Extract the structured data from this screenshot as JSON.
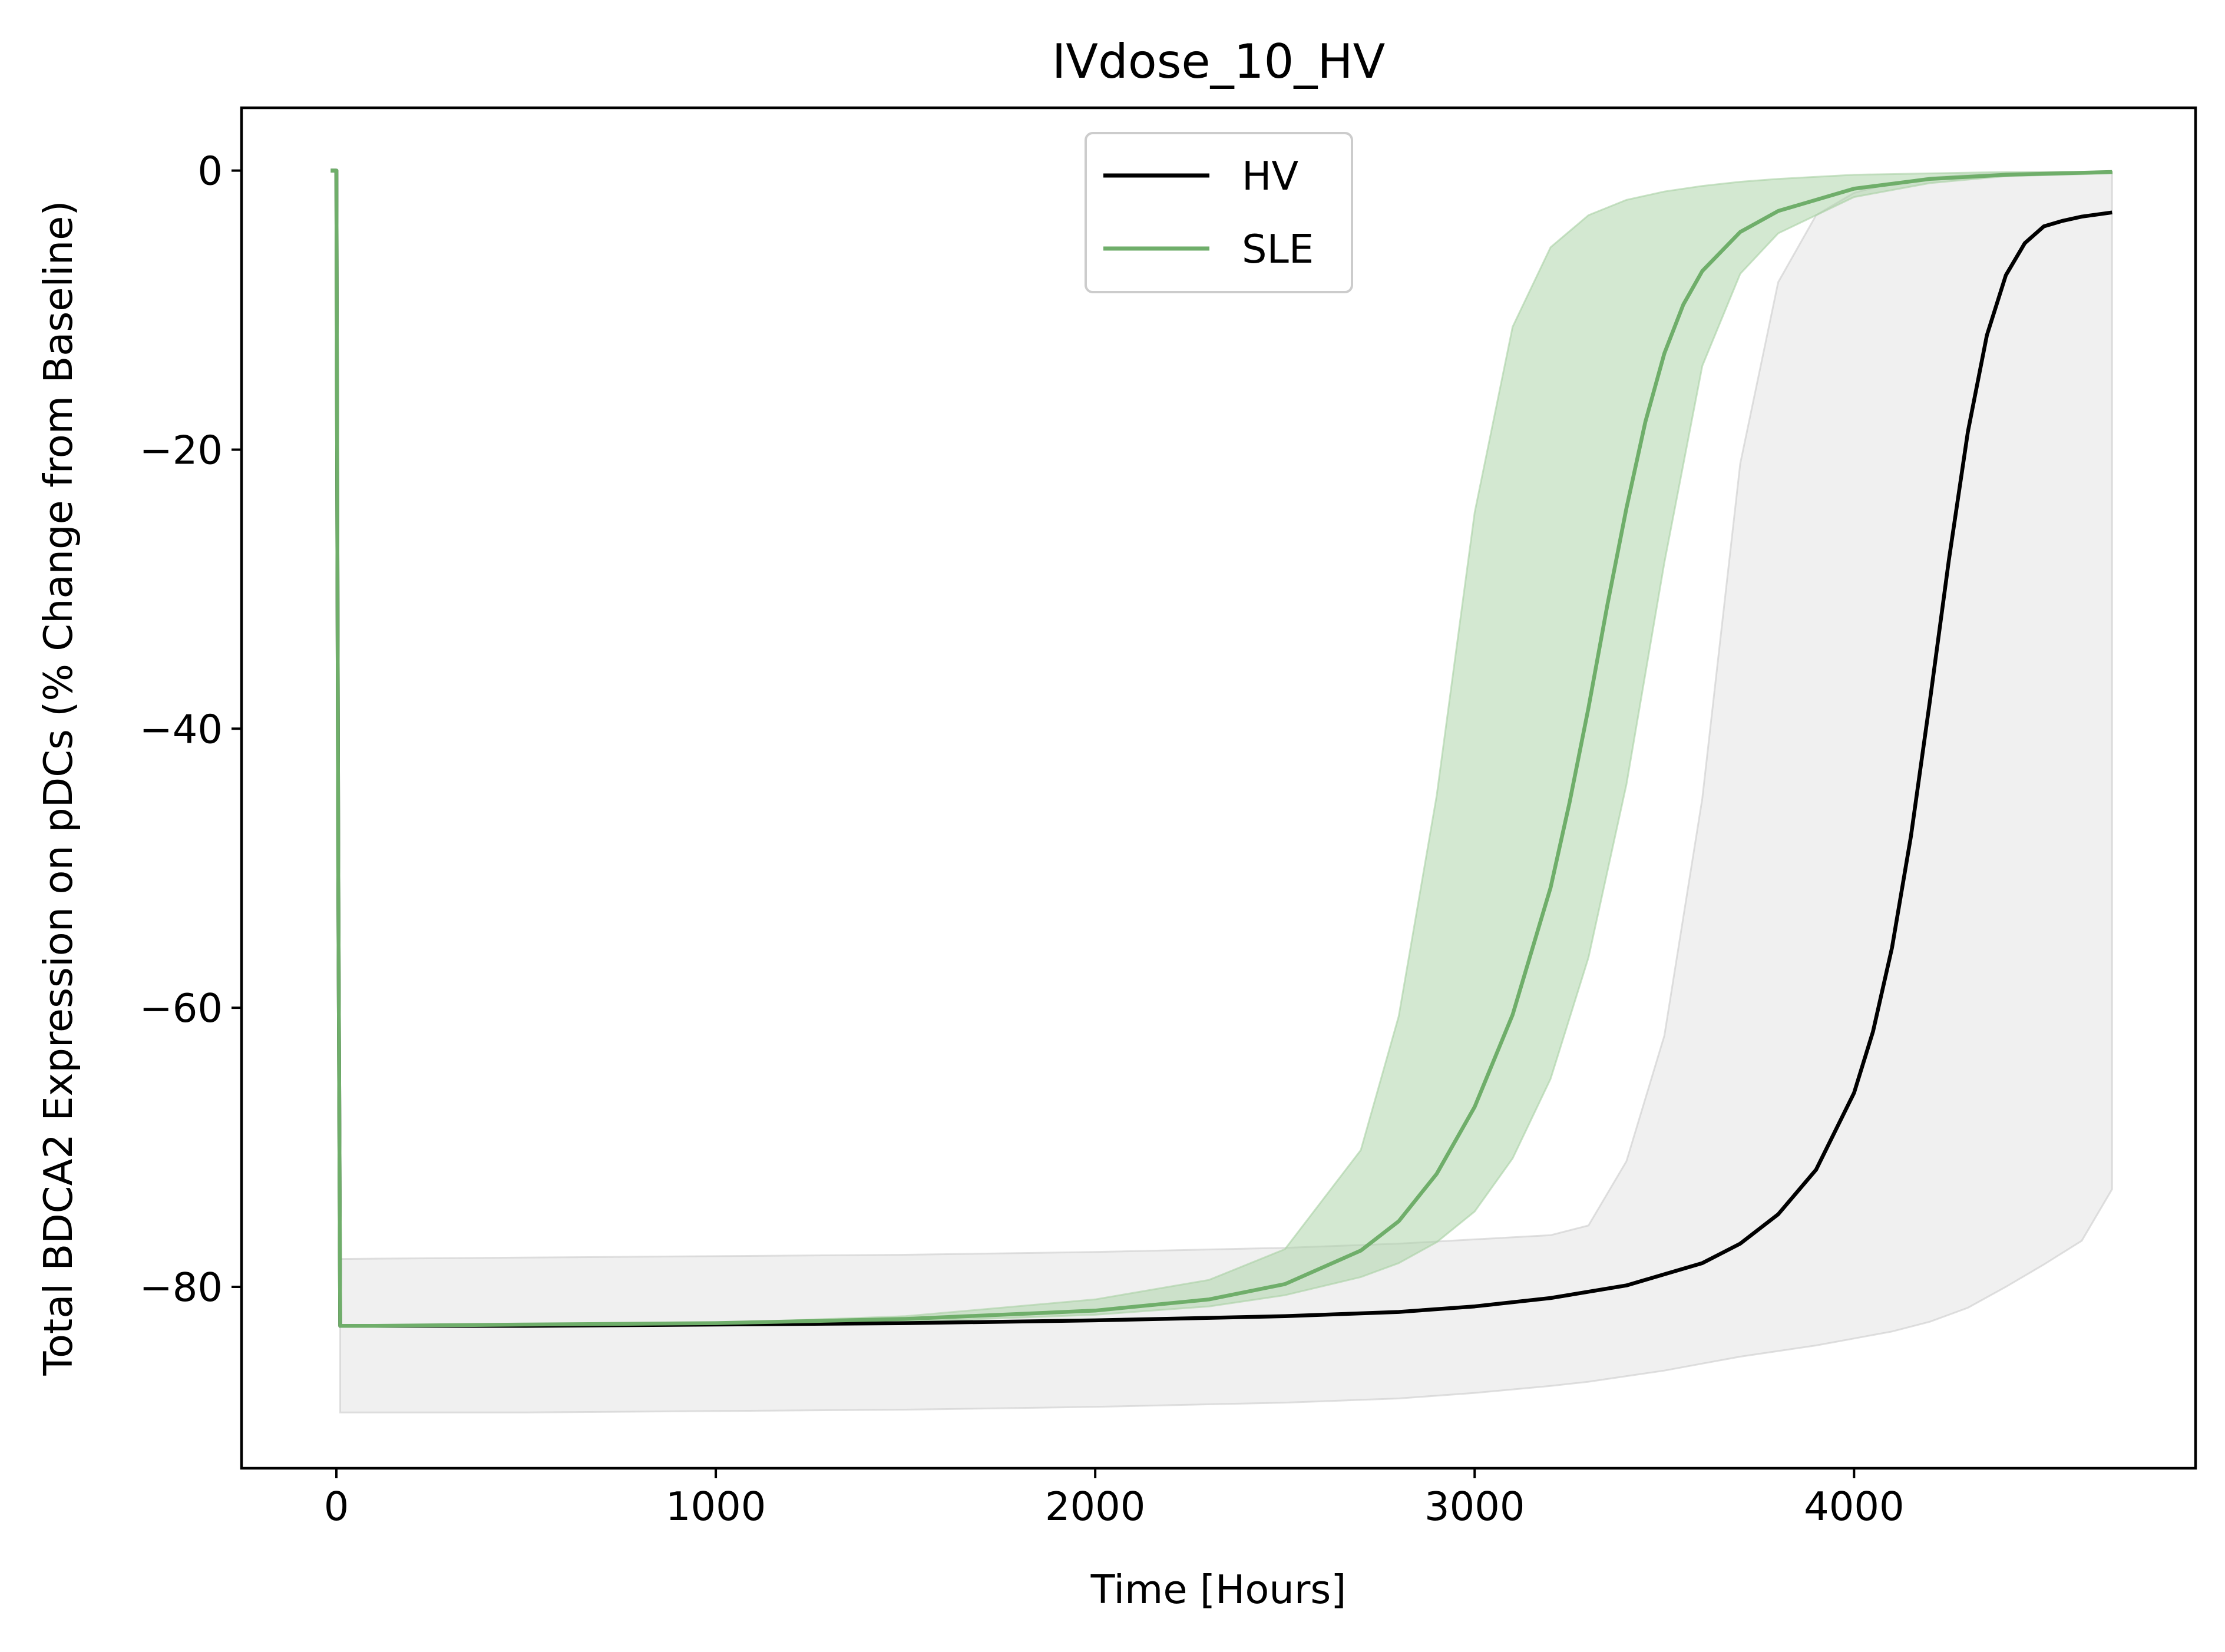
{
  "chart_data": {
    "type": "line",
    "title": "IVdose_10_HV",
    "xlabel": "Time [Hours]",
    "ylabel": "Total BDCA2 Expression on pDCs (% Change from Baseline)",
    "xlim": [
      -250,
      4900
    ],
    "ylim": [
      -93,
      4.5
    ],
    "x_ticks": [
      0,
      1000,
      2000,
      3000,
      4000
    ],
    "x_tick_labels": [
      "0",
      "1000",
      "2000",
      "3000",
      "4000"
    ],
    "y_ticks": [
      0,
      -20,
      -40,
      -60,
      -80
    ],
    "y_tick_labels": [
      "0",
      "−20",
      "−40",
      "−60",
      "−80"
    ],
    "grid": false,
    "legend_position": "top-center",
    "series": [
      {
        "name": "HV",
        "color": "#000000",
        "x": [
          -15,
          0,
          5,
          10,
          100,
          500,
          1000,
          1500,
          2000,
          2500,
          2800,
          3000,
          3200,
          3400,
          3600,
          3700,
          3800,
          3900,
          4000,
          4050,
          4100,
          4150,
          4200,
          4250,
          4300,
          4350,
          4400,
          4450,
          4500,
          4550,
          4600,
          4680
        ],
        "y": [
          0,
          0,
          -50,
          -82.8,
          -82.8,
          -82.8,
          -82.7,
          -82.6,
          -82.4,
          -82.1,
          -81.8,
          -81.4,
          -80.8,
          -79.9,
          -78.3,
          -76.9,
          -74.8,
          -71.6,
          -66.1,
          -61.7,
          -55.7,
          -47.7,
          -38.0,
          -27.9,
          -18.7,
          -11.8,
          -7.5,
          -5.2,
          -4.0,
          -3.6,
          -3.3,
          -3.0
        ],
        "band": {
          "x": [
            10,
            500,
            1000,
            1500,
            2000,
            2500,
            2800,
            3000,
            3200,
            3300,
            3400,
            3500,
            3600,
            3700,
            3800,
            3900,
            4000,
            4100,
            4200,
            4300,
            4400,
            4500,
            4600,
            4680
          ],
          "lower": [
            -89.0,
            -89.0,
            -88.9,
            -88.8,
            -88.6,
            -88.3,
            -88.0,
            -87.6,
            -87.1,
            -86.8,
            -86.4,
            -86.0,
            -85.5,
            -85.0,
            -84.6,
            -84.2,
            -83.7,
            -83.2,
            -82.5,
            -81.5,
            -80.0,
            -78.4,
            -76.7,
            -73.0
          ],
          "upper": [
            -78.0,
            -77.9,
            -77.8,
            -77.7,
            -77.5,
            -77.2,
            -76.9,
            -76.6,
            -76.3,
            -75.6,
            -71.0,
            -62.0,
            -45.0,
            -21.0,
            -8.0,
            -3.2,
            -1.6,
            -0.9,
            -0.5,
            -0.3,
            -0.2,
            -0.1,
            -0.1,
            -0.1
          ]
        },
        "band_color": "#cccccc"
      },
      {
        "name": "SLE",
        "color": "#6fae6a",
        "x": [
          -15,
          0,
          5,
          10,
          100,
          500,
          1000,
          1500,
          2000,
          2300,
          2500,
          2700,
          2800,
          2900,
          3000,
          3100,
          3200,
          3250,
          3300,
          3350,
          3400,
          3450,
          3500,
          3550,
          3600,
          3700,
          3800,
          4000,
          4200,
          4400,
          4680
        ],
        "y": [
          0,
          0,
          -50,
          -82.8,
          -82.8,
          -82.7,
          -82.6,
          -82.3,
          -81.7,
          -80.9,
          -79.8,
          -77.4,
          -75.3,
          -71.9,
          -67.1,
          -60.5,
          -51.4,
          -45.3,
          -38.5,
          -31.1,
          -24.2,
          -18.0,
          -13.1,
          -9.6,
          -7.2,
          -4.4,
          -2.9,
          -1.3,
          -0.6,
          -0.3,
          -0.1
        ],
        "band": {
          "x": [
            10,
            500,
            1000,
            1500,
            2000,
            2300,
            2500,
            2700,
            2800,
            2900,
            3000,
            3100,
            3200,
            3300,
            3400,
            3500,
            3600,
            3700,
            3800,
            4000,
            4200,
            4400,
            4680
          ],
          "lower": [
            -82.8,
            -82.8,
            -82.7,
            -82.5,
            -82.0,
            -81.4,
            -80.6,
            -79.3,
            -78.3,
            -76.8,
            -74.6,
            -70.8,
            -65.1,
            -56.4,
            -44.0,
            -28.1,
            -14.0,
            -7.4,
            -4.5,
            -1.9,
            -0.9,
            -0.4,
            -0.2
          ],
          "upper": [
            -82.8,
            -82.7,
            -82.6,
            -82.1,
            -80.9,
            -79.5,
            -77.3,
            -70.2,
            -60.6,
            -44.8,
            -24.5,
            -11.2,
            -5.5,
            -3.2,
            -2.1,
            -1.5,
            -1.1,
            -0.8,
            -0.6,
            -0.3,
            -0.2,
            -0.1,
            -0.1
          ]
        },
        "band_color": "#a8d1a4"
      }
    ]
  }
}
